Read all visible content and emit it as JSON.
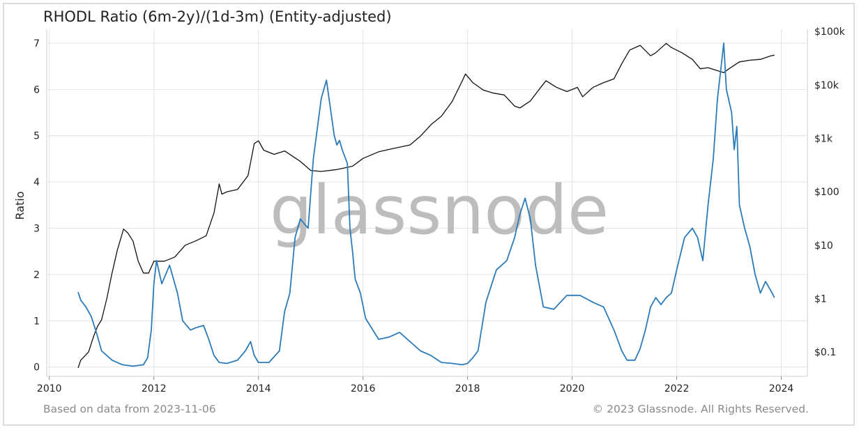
{
  "chart_data": {
    "type": "line",
    "title": "RHODL Ratio (6m-2y)/(1d-3m) (Entity-adjusted)",
    "ylabel": "Ratio",
    "y_left_ticks": [
      "0",
      "1",
      "2",
      "3",
      "4",
      "5",
      "6",
      "7"
    ],
    "y_left_range": [
      -0.2,
      7.3
    ],
    "y_right_ticks": [
      "$0.1",
      "$1",
      "$10",
      "$100",
      "$1k",
      "$10k",
      "$100k"
    ],
    "y_right_scale": "log",
    "y_right_range": [
      0.035,
      110000
    ],
    "x_ticks": [
      "2010",
      "2012",
      "2014",
      "2016",
      "2018",
      "2020",
      "2022",
      "2024"
    ],
    "x_range": [
      2009.95,
      2024.5
    ],
    "grid": true,
    "watermark": "glassnode",
    "series": [
      {
        "axis": "left",
        "color": "#2b7bba",
        "x": [
          2010.55,
          2010.6,
          2010.7,
          2010.8,
          2010.9,
          2011.0,
          2011.2,
          2011.4,
          2011.6,
          2011.8,
          2011.88,
          2011.95,
          2012.0,
          2012.05,
          2012.15,
          2012.3,
          2012.45,
          2012.55,
          2012.7,
          2012.8,
          2012.95,
          2013.05,
          2013.15,
          2013.25,
          2013.4,
          2013.6,
          2013.75,
          2013.85,
          2013.92,
          2014.0,
          2014.2,
          2014.4,
          2014.5,
          2014.6,
          2014.7,
          2014.8,
          2014.95,
          2015.05,
          2015.2,
          2015.3,
          2015.4,
          2015.45,
          2015.5,
          2015.55,
          2015.6,
          2015.7,
          2015.75,
          2015.8,
          2015.85,
          2015.95,
          2016.05,
          2016.3,
          2016.5,
          2016.7,
          2016.9,
          2017.1,
          2017.3,
          2017.5,
          2017.7,
          2017.9,
          2018.0,
          2018.1,
          2018.2,
          2018.35,
          2018.55,
          2018.75,
          2018.9,
          2019.0,
          2019.1,
          2019.2,
          2019.3,
          2019.45,
          2019.65,
          2019.9,
          2020.15,
          2020.4,
          2020.6,
          2020.8,
          2020.95,
          2021.05,
          2021.2,
          2021.3,
          2021.4,
          2021.5,
          2021.6,
          2021.7,
          2021.8,
          2021.9,
          2022.0,
          2022.15,
          2022.3,
          2022.4,
          2022.5,
          2022.6,
          2022.7,
          2022.78,
          2022.85,
          2022.9,
          2022.95,
          2023.05,
          2023.1,
          2023.15,
          2023.2,
          2023.3,
          2023.4,
          2023.5,
          2023.6,
          2023.7,
          2023.8,
          2023.87
        ],
        "values": [
          1.62,
          1.45,
          1.3,
          1.1,
          0.75,
          0.35,
          0.15,
          0.05,
          0.02,
          0.05,
          0.2,
          0.8,
          1.8,
          2.3,
          1.8,
          2.2,
          1.6,
          1.0,
          0.8,
          0.85,
          0.9,
          0.6,
          0.25,
          0.1,
          0.08,
          0.15,
          0.35,
          0.55,
          0.25,
          0.1,
          0.1,
          0.35,
          1.2,
          1.6,
          2.8,
          3.2,
          3.0,
          4.5,
          5.8,
          6.2,
          5.4,
          5.0,
          4.8,
          4.9,
          4.7,
          4.4,
          3.0,
          2.5,
          1.9,
          1.6,
          1.05,
          0.6,
          0.65,
          0.75,
          0.55,
          0.35,
          0.25,
          0.1,
          0.08,
          0.05,
          0.08,
          0.2,
          0.35,
          1.4,
          2.1,
          2.3,
          2.8,
          3.3,
          3.65,
          3.2,
          2.2,
          1.3,
          1.25,
          1.55,
          1.55,
          1.4,
          1.3,
          0.8,
          0.35,
          0.15,
          0.15,
          0.4,
          0.8,
          1.3,
          1.5,
          1.35,
          1.5,
          1.6,
          2.1,
          2.8,
          3.0,
          2.8,
          2.3,
          3.5,
          4.5,
          5.8,
          6.5,
          7.0,
          6.0,
          5.5,
          4.7,
          5.2,
          3.5,
          3.0,
          2.6,
          2.0,
          1.6,
          1.85,
          1.65,
          1.5
        ]
      },
      {
        "axis": "right",
        "color": "#111111",
        "x": [
          2010.55,
          2010.6,
          2010.75,
          2010.85,
          2010.92,
          2011.0,
          2011.1,
          2011.2,
          2011.3,
          2011.42,
          2011.5,
          2011.6,
          2011.7,
          2011.8,
          2011.9,
          2012.0,
          2012.2,
          2012.4,
          2012.6,
          2012.8,
          2013.0,
          2013.15,
          2013.25,
          2013.3,
          2013.4,
          2013.6,
          2013.8,
          2013.92,
          2014.0,
          2014.1,
          2014.3,
          2014.5,
          2014.8,
          2015.0,
          2015.2,
          2015.5,
          2015.8,
          2016.0,
          2016.3,
          2016.6,
          2016.9,
          2017.1,
          2017.3,
          2017.5,
          2017.7,
          2017.9,
          2017.96,
          2018.1,
          2018.3,
          2018.5,
          2018.7,
          2018.9,
          2019.0,
          2019.2,
          2019.4,
          2019.5,
          2019.7,
          2019.9,
          2020.1,
          2020.2,
          2020.4,
          2020.6,
          2020.8,
          2020.95,
          2021.1,
          2021.3,
          2021.5,
          2021.6,
          2021.8,
          2021.9,
          2022.1,
          2022.3,
          2022.45,
          2022.6,
          2022.9,
          2023.0,
          2023.2,
          2023.4,
          2023.6,
          2023.8,
          2023.87
        ],
        "values": [
          0.05,
          0.07,
          0.1,
          0.2,
          0.3,
          0.4,
          1.0,
          3.0,
          8.0,
          20.0,
          17.0,
          12.0,
          5.0,
          3.0,
          3.0,
          5.0,
          5.0,
          6.0,
          10.0,
          12.0,
          15.0,
          40.0,
          140.0,
          90.0,
          100.0,
          110.0,
          200.0,
          800.0,
          900.0,
          600.0,
          500.0,
          580.0,
          370.0,
          250.0,
          240.0,
          260.0,
          300.0,
          420.0,
          560.0,
          650.0,
          750.0,
          1100.0,
          1800.0,
          2600.0,
          4800.0,
          12000.0,
          16000.0,
          11000.0,
          8000.0,
          7000.0,
          6500.0,
          4000.0,
          3700.0,
          5000.0,
          9000.0,
          12000.0,
          9000.0,
          7500.0,
          9000.0,
          6000.0,
          9000.0,
          11000.0,
          13000.0,
          25000.0,
          45000.0,
          55000.0,
          35000.0,
          40000.0,
          60000.0,
          50000.0,
          40000.0,
          30000.0,
          20000.0,
          21000.0,
          17000.0,
          20000.0,
          27000.0,
          29000.0,
          30000.0,
          35000.0,
          36000.0
        ]
      }
    ]
  },
  "footer": {
    "left": "Based on data from 2023-11-06",
    "right": "© 2023 Glassnode. All Rights Reserved."
  }
}
